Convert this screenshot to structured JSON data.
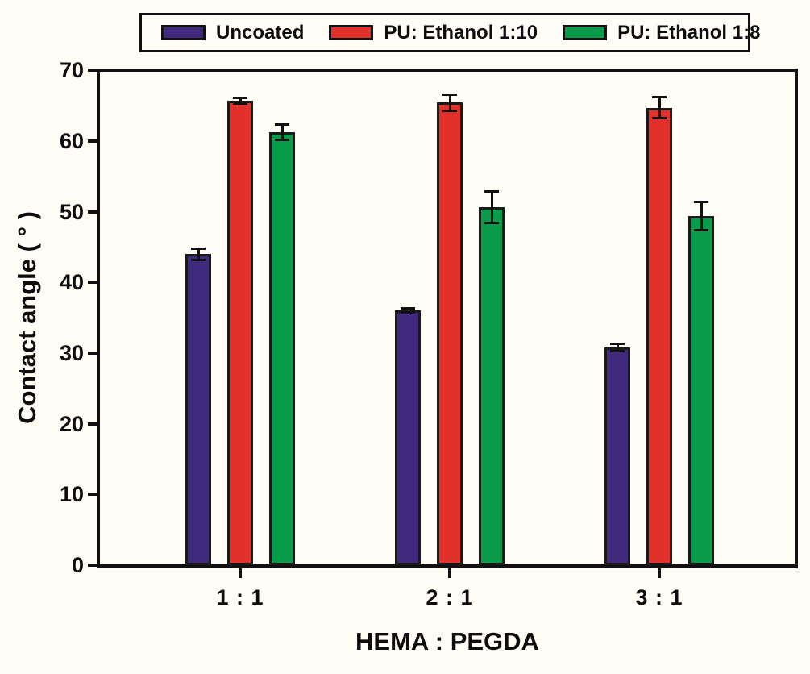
{
  "figure": {
    "background_color": "#fffdf6",
    "frame_color": "#111111",
    "legend_position": "top-center"
  },
  "chart_data": {
    "type": "bar",
    "title": "",
    "xlabel": "HEMA : PEGDA",
    "ylabel": "Contact angle ( ° )",
    "ylim": [
      0,
      70
    ],
    "yticks": [
      0,
      10,
      20,
      30,
      40,
      50,
      60,
      70
    ],
    "grid": false,
    "error_bars": true,
    "legend_position": "top",
    "categories": [
      "1 : 1",
      "2 : 1",
      "3 : 1"
    ],
    "series": [
      {
        "name": "Uncoated",
        "color": "#3f2a7e",
        "values": [
          44.0,
          36.0,
          30.8
        ],
        "errors": [
          0.8,
          0.3,
          0.5
        ]
      },
      {
        "name": "PU: Ethanol 1:10",
        "color": "#e2312a",
        "values": [
          65.7,
          65.4,
          64.7
        ],
        "errors": [
          0.4,
          1.1,
          1.5
        ]
      },
      {
        "name": "PU: Ethanol 1:8",
        "color": "#089b4a",
        "values": [
          61.2,
          50.6,
          49.4
        ],
        "errors": [
          1.1,
          2.2,
          2.0
        ]
      }
    ]
  }
}
